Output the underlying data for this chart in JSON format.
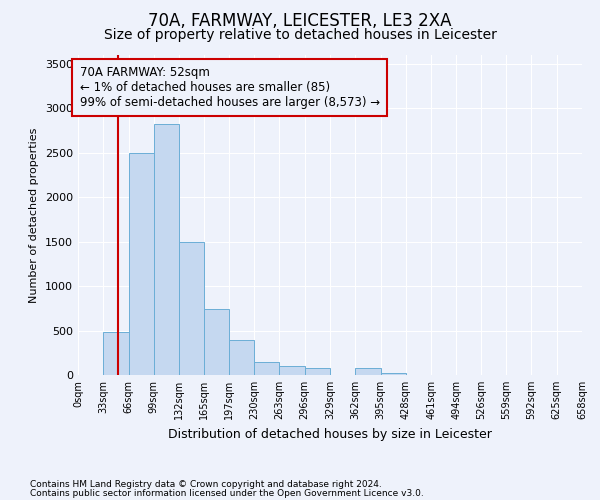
{
  "title": "70A, FARMWAY, LEICESTER, LE3 2XA",
  "subtitle": "Size of property relative to detached houses in Leicester",
  "xlabel": "Distribution of detached houses by size in Leicester",
  "ylabel": "Number of detached properties",
  "bar_edges": [
    0,
    33,
    66,
    99,
    132,
    165,
    197,
    230,
    263,
    296,
    329,
    362,
    395,
    428,
    461,
    494,
    526,
    559,
    592,
    625,
    658
  ],
  "bar_heights": [
    5,
    480,
    2500,
    2820,
    1500,
    740,
    390,
    150,
    100,
    80,
    0,
    75,
    25,
    0,
    0,
    0,
    0,
    0,
    0,
    0
  ],
  "bar_color": "#c5d8f0",
  "bar_edgecolor": "#6baed6",
  "ylim": [
    0,
    3600
  ],
  "yticks": [
    0,
    500,
    1000,
    1500,
    2000,
    2500,
    3000,
    3500
  ],
  "property_line_x": 52,
  "property_line_color": "#cc0000",
  "annotation_text": "70A FARMWAY: 52sqm\n← 1% of detached houses are smaller (85)\n99% of semi-detached houses are larger (8,573) →",
  "annotation_box_color": "#cc0000",
  "footnote1": "Contains HM Land Registry data © Crown copyright and database right 2024.",
  "footnote2": "Contains public sector information licensed under the Open Government Licence v3.0.",
  "bg_color": "#eef2fb",
  "grid_color": "#ffffff",
  "title_fontsize": 12,
  "subtitle_fontsize": 10,
  "tick_labels": [
    "0sqm",
    "33sqm",
    "66sqm",
    "99sqm",
    "132sqm",
    "165sqm",
    "197sqm",
    "230sqm",
    "263sqm",
    "296sqm",
    "329sqm",
    "362sqm",
    "395sqm",
    "428sqm",
    "461sqm",
    "494sqm",
    "526sqm",
    "559sqm",
    "592sqm",
    "625sqm",
    "658sqm"
  ]
}
